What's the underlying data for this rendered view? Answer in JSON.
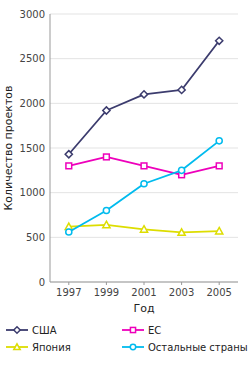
{
  "chart_data": {
    "type": "line",
    "x": [
      1997,
      1999,
      2001,
      2003,
      2005
    ],
    "xlim": [
      1996,
      2006
    ],
    "xticks": [
      1997,
      1999,
      2001,
      2003,
      2005
    ],
    "ylim": [
      0,
      3000
    ],
    "yticks": [
      0,
      500,
      1000,
      1500,
      2000,
      2500,
      3000
    ],
    "xlabel": "Год",
    "ylabel": "Количество проектов",
    "grid": true,
    "legend": "bottom",
    "series": [
      {
        "name": "США",
        "color": "#3c3c6e",
        "marker": "diamond",
        "values": [
          1430,
          1920,
          2100,
          2150,
          2700
        ]
      },
      {
        "name": "ЕС",
        "color": "#ee00bb",
        "marker": "square",
        "values": [
          1300,
          1400,
          1300,
          1200,
          1300
        ]
      },
      {
        "name": "Япония",
        "color": "#dddd00",
        "marker": "triangle",
        "values": [
          620,
          640,
          590,
          555,
          570
        ]
      },
      {
        "name": "Остальные страны",
        "color": "#00bbee",
        "marker": "circle",
        "values": [
          560,
          800,
          1100,
          1250,
          1580
        ]
      }
    ]
  }
}
